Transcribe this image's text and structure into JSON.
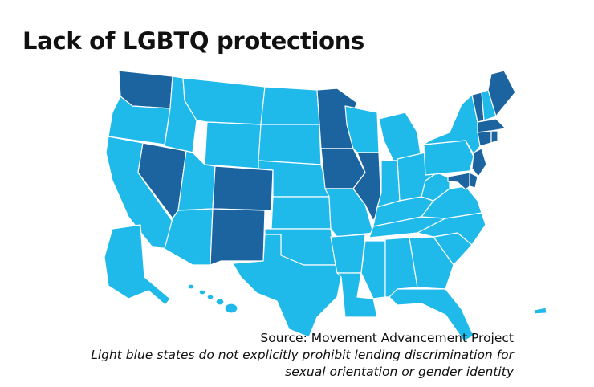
{
  "title": "Lack of LGBTQ protections",
  "source": "Source: Movement Advancement Project",
  "caption_line1": "Light blue states do not explicitly prohibit lending discrimination for",
  "caption_line2": "sexual orientation or gender identity",
  "colors": {
    "no_protection": "#1fb9ea",
    "protection": "#1b64a0"
  },
  "legend_meaning": {
    "no_protection": "light blue",
    "protection": "dark blue"
  },
  "states": [
    {
      "id": "WA",
      "name": "Washington",
      "protected": true
    },
    {
      "id": "OR",
      "name": "Oregon",
      "protected": false
    },
    {
      "id": "CA",
      "name": "California",
      "protected": false
    },
    {
      "id": "NV",
      "name": "Nevada",
      "protected": true
    },
    {
      "id": "ID",
      "name": "Idaho",
      "protected": false
    },
    {
      "id": "MT",
      "name": "Montana",
      "protected": false
    },
    {
      "id": "WY",
      "name": "Wyoming",
      "protected": false
    },
    {
      "id": "UT",
      "name": "Utah",
      "protected": false
    },
    {
      "id": "AZ",
      "name": "Arizona",
      "protected": false
    },
    {
      "id": "CO",
      "name": "Colorado",
      "protected": true
    },
    {
      "id": "NM",
      "name": "New Mexico",
      "protected": true
    },
    {
      "id": "ND",
      "name": "North Dakota",
      "protected": false
    },
    {
      "id": "SD",
      "name": "South Dakota",
      "protected": false
    },
    {
      "id": "NE",
      "name": "Nebraska",
      "protected": false
    },
    {
      "id": "KS",
      "name": "Kansas",
      "protected": false
    },
    {
      "id": "OK",
      "name": "Oklahoma",
      "protected": false
    },
    {
      "id": "TX",
      "name": "Texas",
      "protected": false
    },
    {
      "id": "MN",
      "name": "Minnesota",
      "protected": true
    },
    {
      "id": "IA",
      "name": "Iowa",
      "protected": true
    },
    {
      "id": "MO",
      "name": "Missouri",
      "protected": false
    },
    {
      "id": "AR",
      "name": "Arkansas",
      "protected": false
    },
    {
      "id": "LA",
      "name": "Louisiana",
      "protected": false
    },
    {
      "id": "WI",
      "name": "Wisconsin",
      "protected": false
    },
    {
      "id": "IL",
      "name": "Illinois",
      "protected": true
    },
    {
      "id": "MI",
      "name": "Michigan",
      "protected": false
    },
    {
      "id": "IN",
      "name": "Indiana",
      "protected": false
    },
    {
      "id": "OH",
      "name": "Ohio",
      "protected": false
    },
    {
      "id": "KY",
      "name": "Kentucky",
      "protected": false
    },
    {
      "id": "TN",
      "name": "Tennessee",
      "protected": false
    },
    {
      "id": "MS",
      "name": "Mississippi",
      "protected": false
    },
    {
      "id": "AL",
      "name": "Alabama",
      "protected": false
    },
    {
      "id": "GA",
      "name": "Georgia",
      "protected": false
    },
    {
      "id": "FL",
      "name": "Florida",
      "protected": false
    },
    {
      "id": "SC",
      "name": "South Carolina",
      "protected": false
    },
    {
      "id": "NC",
      "name": "North Carolina",
      "protected": false
    },
    {
      "id": "VA",
      "name": "Virginia",
      "protected": false
    },
    {
      "id": "WV",
      "name": "West Virginia",
      "protected": false
    },
    {
      "id": "PA",
      "name": "Pennsylvania",
      "protected": false
    },
    {
      "id": "NY",
      "name": "New York",
      "protected": false
    },
    {
      "id": "VT",
      "name": "Vermont",
      "protected": true
    },
    {
      "id": "NH",
      "name": "New Hampshire",
      "protected": false
    },
    {
      "id": "ME",
      "name": "Maine",
      "protected": true
    },
    {
      "id": "MA",
      "name": "Massachusetts",
      "protected": true
    },
    {
      "id": "CT",
      "name": "Connecticut",
      "protected": true
    },
    {
      "id": "RI",
      "name": "Rhode Island",
      "protected": true
    },
    {
      "id": "NJ",
      "name": "New Jersey",
      "protected": true
    },
    {
      "id": "DE",
      "name": "Delaware",
      "protected": true
    },
    {
      "id": "MD",
      "name": "Maryland",
      "protected": true
    },
    {
      "id": "AK",
      "name": "Alaska",
      "protected": false
    },
    {
      "id": "HI",
      "name": "Hawaii",
      "protected": false
    },
    {
      "id": "PR",
      "name": "Puerto Rico",
      "protected": false
    }
  ]
}
